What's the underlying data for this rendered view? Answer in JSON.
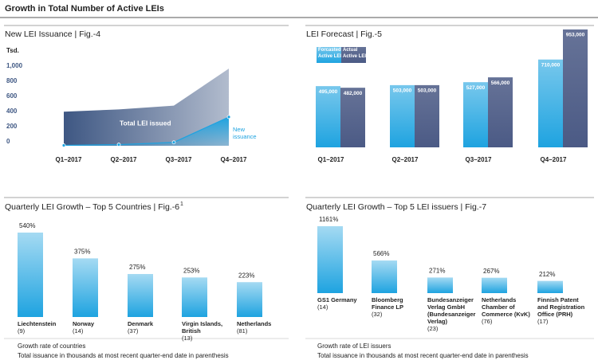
{
  "title": "Growth in Total Number of Active LEIs",
  "chart_data": [
    {
      "type": "area",
      "title": "New LEI Issuance | Fig.-4",
      "ylabel": "Tsd.",
      "categories": [
        "Q1–2017",
        "Q2–2017",
        "Q3–2017",
        "Q4–2017"
      ],
      "series": [
        {
          "name": "Total LEI issued",
          "color": "#3e5783",
          "values": [
            450,
            480,
            530,
            1020
          ]
        },
        {
          "name": "New issuance",
          "color": "#1ea3e0",
          "values": [
            5,
            15,
            45,
            380
          ]
        }
      ],
      "ylim": [
        0,
        1100
      ],
      "yticks": [
        0,
        200,
        400,
        600,
        800,
        {
          "value": 1000,
          "label": "1,000"
        }
      ]
    },
    {
      "type": "bar",
      "title": "LEI Forecast | Fig.-5",
      "categories": [
        "Q1–2017",
        "Q2–2017",
        "Q3–2017",
        "Q4–2017"
      ],
      "series": [
        {
          "name": "Forcasted Active LEI",
          "color": "#1ea3e0",
          "values": [
            495000,
            503000,
            527000,
            710000
          ],
          "value_labels": [
            "495,000",
            "503,000",
            "527,000",
            "710,000"
          ]
        },
        {
          "name": "Actual Active LEI",
          "color": "#4b5a85",
          "values": [
            482000,
            503000,
            566000,
            953000
          ],
          "value_labels": [
            "482,000",
            "503,000",
            "566,000",
            "953,000"
          ]
        }
      ]
    },
    {
      "type": "bar",
      "title": "Quarterly LEI Growth – Top 5 Countries | Fig.-6",
      "title_sup": "1",
      "categories": [
        "Liechtenstein",
        "Norway",
        "Denmark",
        "Virgin Islands, British",
        "Netherlands"
      ],
      "category_counts": [
        "(9)",
        "(14)",
        "(37)",
        "(13)",
        "(81)"
      ],
      "values": [
        540,
        375,
        275,
        253,
        223
      ],
      "value_labels": [
        "540%",
        "375%",
        "275%",
        "253%",
        "223%"
      ],
      "color": "#1ea3e0",
      "notes": [
        "Growth rate of countries",
        "Total issuance in thousands at most recent quarter-end date in parenthesis"
      ]
    },
    {
      "type": "bar",
      "title": "Quarterly LEI Growth – Top 5 LEI issuers | Fig.-7",
      "categories": [
        "GS1 Germany",
        "Bloomberg Finance LP",
        "Bundesanzeiger Verlag GmbH (Bundesanzeiger Verlag)",
        "Netherlands Chamber of Commerce (KvK)",
        "Finnish Patent and Registration Office (PRH)"
      ],
      "category_counts": [
        "(14)",
        "(32)",
        "(23)",
        "(76)",
        "(17)"
      ],
      "values": [
        1161,
        566,
        271,
        267,
        212
      ],
      "value_labels": [
        "1161%",
        "566%",
        "271%",
        "267%",
        "212%"
      ],
      "color": "#1ea3e0",
      "notes": [
        "Growth rate of LEI issuers",
        "Total issuance in thousands at most recent quarter-end date in parenthesis"
      ]
    }
  ]
}
